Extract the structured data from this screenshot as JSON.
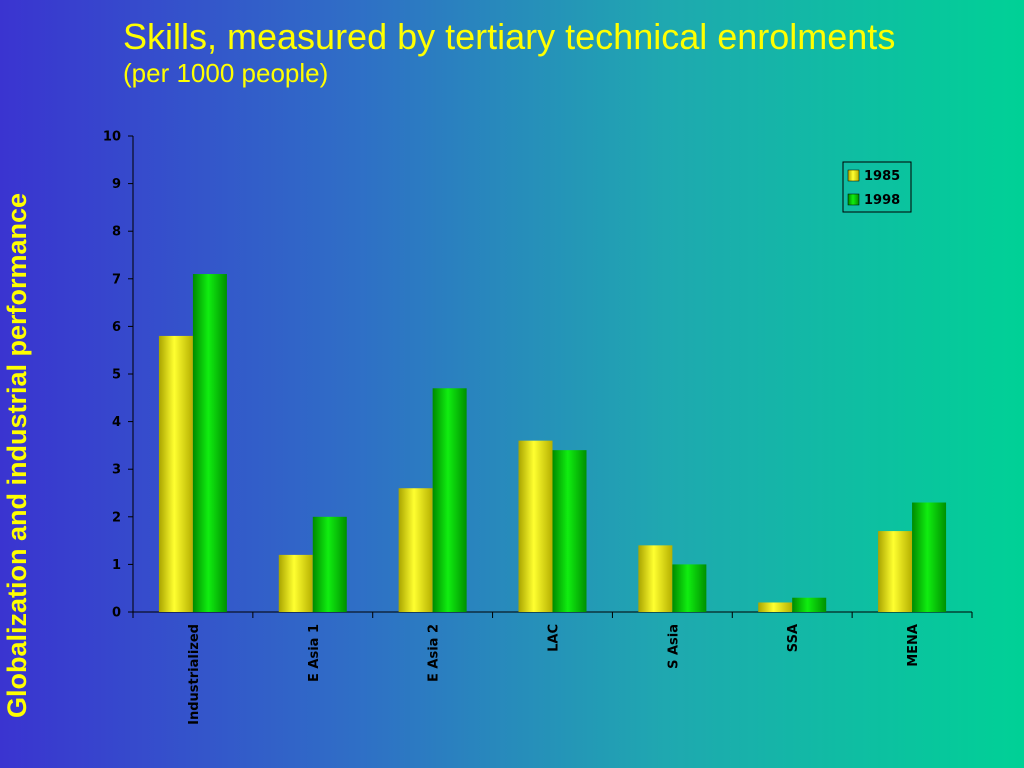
{
  "slide": {
    "side_title": "Globalization and industrial performance",
    "title": "Skills, measured by tertiary technical enrolments",
    "subtitle": "(per 1000 people)"
  },
  "colors": {
    "series_1985": "#ffff00",
    "series_1998": "#00dd00",
    "axis": "#000000",
    "title": "#ffff00"
  },
  "chart_data": {
    "type": "bar",
    "title": "Skills, measured by tertiary technical enrolments",
    "subtitle": "(per 1000 people)",
    "xlabel": "",
    "ylabel": "",
    "ylim": [
      0,
      10
    ],
    "yticks": [
      "0",
      "1",
      "2",
      "3",
      "4",
      "5",
      "6",
      "7",
      "8",
      "9",
      "10"
    ],
    "grid": false,
    "legend_position": "top-right",
    "categories": [
      "Industrialized",
      "E Asia 1",
      "E Asia 2",
      "LAC",
      "S Asia",
      "SSA",
      "MENA"
    ],
    "series": [
      {
        "name": "1985",
        "values": [
          5.8,
          1.2,
          2.6,
          3.6,
          1.4,
          0.2,
          1.7
        ]
      },
      {
        "name": "1998",
        "values": [
          7.1,
          2.0,
          4.7,
          3.4,
          1.0,
          0.3,
          2.3
        ]
      }
    ]
  }
}
